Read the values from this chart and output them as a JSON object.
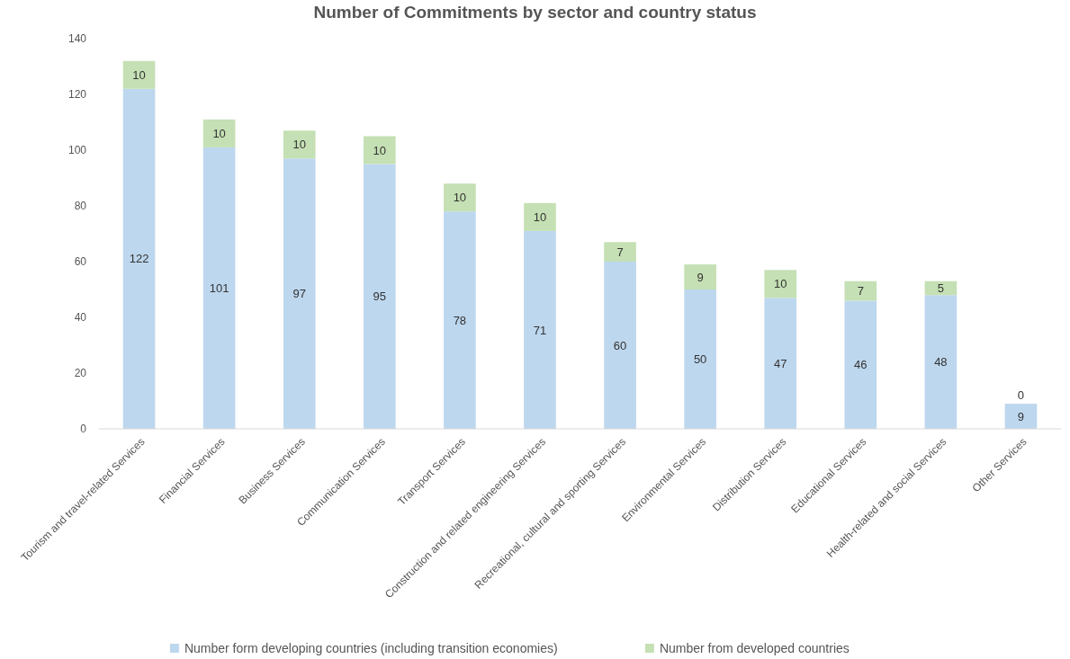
{
  "chart_data": {
    "type": "bar",
    "title": "Number of Commitments by sector and country status",
    "stacked": true,
    "data_labels": true,
    "legend": "bottom",
    "grid": false,
    "categories": [
      "Tourism and travel-related Services",
      "Financial Services",
      "Business Services",
      "Communication Services",
      "Transport Services",
      "Construction and related engineering Services",
      "Recreational, cultural and sporting Services",
      "Environmental Services",
      "Distribution Services",
      "Educational Services",
      "Health-related and social Services",
      "Other Services"
    ],
    "series": [
      {
        "name": "Number form developing countries (including transition economies)",
        "color": "#bdd7ee",
        "values": [
          122,
          101,
          97,
          95,
          78,
          71,
          60,
          50,
          47,
          46,
          48,
          9
        ]
      },
      {
        "name": "Number from developed countries",
        "color": "#c5e0b4",
        "values": [
          10,
          10,
          10,
          10,
          10,
          10,
          7,
          9,
          10,
          7,
          5,
          0
        ]
      }
    ],
    "ylim": [
      0,
      140
    ],
    "yticks": [
      0,
      20,
      40,
      60,
      80,
      100,
      120,
      140
    ]
  }
}
